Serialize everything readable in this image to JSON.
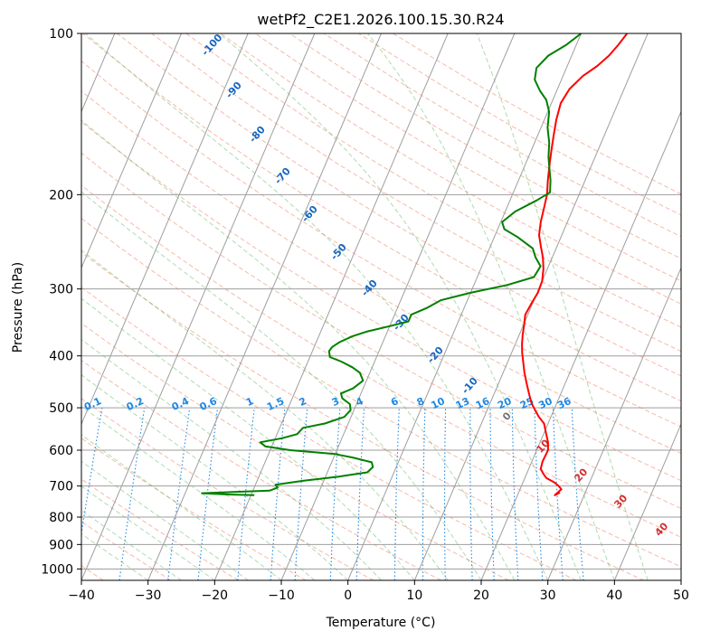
{
  "chart_data": {
    "type": "line",
    "title": "wetPf2_C2E1.2026.100.15.30.R24",
    "xlabel": "Temperature (°C)",
    "ylabel": "Pressure (hPa)",
    "xlim": [
      -40,
      50
    ],
    "ylim": [
      1050,
      100
    ],
    "y_scale": "log",
    "x_ticks": [
      -40,
      -30,
      -20,
      -10,
      0,
      10,
      20,
      30,
      40,
      50
    ],
    "y_ticks": [
      100,
      200,
      300,
      400,
      500,
      600,
      700,
      800,
      900,
      1000
    ],
    "grid": true,
    "series": [
      {
        "color": "#ff0000",
        "points": [
          [
            26.2,
            720
          ],
          [
            25.6,
            728
          ],
          [
            26.2,
            710
          ],
          [
            25.6,
            700
          ],
          [
            24.6,
            688
          ],
          [
            23.2,
            676
          ],
          [
            22.5,
            664
          ],
          [
            21.8,
            650
          ],
          [
            21.6,
            630
          ],
          [
            21.7,
            600
          ],
          [
            21.2,
            580
          ],
          [
            20.6,
            565
          ],
          [
            20.0,
            550
          ],
          [
            19.4,
            535
          ],
          [
            18.2,
            520
          ],
          [
            17.2,
            505
          ],
          [
            16.2,
            490
          ],
          [
            15.2,
            470
          ],
          [
            14.2,
            450
          ],
          [
            13.2,
            430
          ],
          [
            12.3,
            410
          ],
          [
            11.6,
            395
          ],
          [
            11.0,
            380
          ],
          [
            10.5,
            365
          ],
          [
            10.1,
            350
          ],
          [
            9.6,
            335
          ],
          [
            9.8,
            320
          ],
          [
            10.1,
            305
          ],
          [
            10.0,
            290
          ],
          [
            9.4,
            275
          ],
          [
            8.6,
            262
          ],
          [
            7.6,
            250
          ],
          [
            6.6,
            238
          ],
          [
            6.0,
            225
          ],
          [
            5.6,
            212
          ],
          [
            5.2,
            200
          ],
          [
            4.4,
            188
          ],
          [
            3.6,
            175
          ],
          [
            3.0,
            165
          ],
          [
            2.4,
            155
          ],
          [
            1.8,
            145
          ],
          [
            1.4,
            135
          ],
          [
            1.8,
            127
          ],
          [
            3.0,
            120
          ],
          [
            4.5,
            115
          ],
          [
            5.6,
            110
          ],
          [
            6.3,
            105
          ],
          [
            6.9,
            100
          ]
        ]
      },
      {
        "color": "#008000",
        "points": [
          [
            -19.5,
            728
          ],
          [
            -23.0,
            726
          ],
          [
            -27.5,
            722
          ],
          [
            -24.0,
            719
          ],
          [
            -17.5,
            714
          ],
          [
            -16.5,
            705
          ],
          [
            -17.0,
            696
          ],
          [
            -13.0,
            684
          ],
          [
            -8.0,
            672
          ],
          [
            -4.0,
            660
          ],
          [
            -3.5,
            645
          ],
          [
            -4.0,
            632
          ],
          [
            -7.0,
            620
          ],
          [
            -10.0,
            610
          ],
          [
            -17.0,
            600
          ],
          [
            -21.0,
            590
          ],
          [
            -22.0,
            580
          ],
          [
            -19.0,
            570
          ],
          [
            -17.0,
            560
          ],
          [
            -16.5,
            545
          ],
          [
            -13.5,
            535
          ],
          [
            -11.0,
            520
          ],
          [
            -10.5,
            505
          ],
          [
            -11.0,
            492
          ],
          [
            -12.5,
            480
          ],
          [
            -13.0,
            470
          ],
          [
            -11.5,
            460
          ],
          [
            -10.5,
            445
          ],
          [
            -11.5,
            430
          ],
          [
            -13.0,
            420
          ],
          [
            -15.0,
            410
          ],
          [
            -17.0,
            402
          ],
          [
            -17.5,
            392
          ],
          [
            -17.3,
            385
          ],
          [
            -16.5,
            377
          ],
          [
            -15.0,
            368
          ],
          [
            -13.0,
            360
          ],
          [
            -10.0,
            352
          ],
          [
            -7.5,
            345
          ],
          [
            -7.5,
            335
          ],
          [
            -5.5,
            325
          ],
          [
            -4.0,
            315
          ],
          [
            0.0,
            305
          ],
          [
            5.0,
            295
          ],
          [
            8.5,
            285
          ],
          [
            8.8,
            272
          ],
          [
            7.5,
            262
          ],
          [
            6.5,
            252
          ],
          [
            3.5,
            240
          ],
          [
            1.0,
            232
          ],
          [
            0.2,
            225
          ],
          [
            1.5,
            215
          ],
          [
            4.0,
            205
          ],
          [
            5.5,
            198
          ],
          [
            4.8,
            188
          ],
          [
            3.8,
            178
          ],
          [
            3.0,
            170
          ],
          [
            2.2,
            160
          ],
          [
            1.0,
            150
          ],
          [
            0.2,
            140
          ],
          [
            -1.0,
            133
          ],
          [
            -2.5,
            128
          ],
          [
            -4.0,
            122
          ],
          [
            -4.5,
            116
          ],
          [
            -3.5,
            110
          ],
          [
            -1.5,
            105
          ],
          [
            0.0,
            100
          ]
        ]
      }
    ],
    "dry_adiabat_labels": [
      "-100",
      "-90",
      "-80",
      "-70",
      "-60",
      "-50",
      "-40",
      "-30",
      "-20",
      "-10",
      "0",
      "10",
      "20",
      "30",
      "40"
    ],
    "mixing_ratio_labels": [
      "0.1",
      "0.2",
      "0.4",
      "0.6",
      "1",
      "1.5",
      "2",
      "3",
      "4",
      "6",
      "8",
      "10",
      "13",
      "16",
      "20",
      "25",
      "30",
      "36"
    ],
    "mixing_ratio_values": [
      0.1,
      0.2,
      0.4,
      0.6,
      1,
      1.5,
      2,
      3,
      4,
      6,
      8,
      10,
      13,
      16,
      20,
      25,
      30,
      36
    ]
  }
}
